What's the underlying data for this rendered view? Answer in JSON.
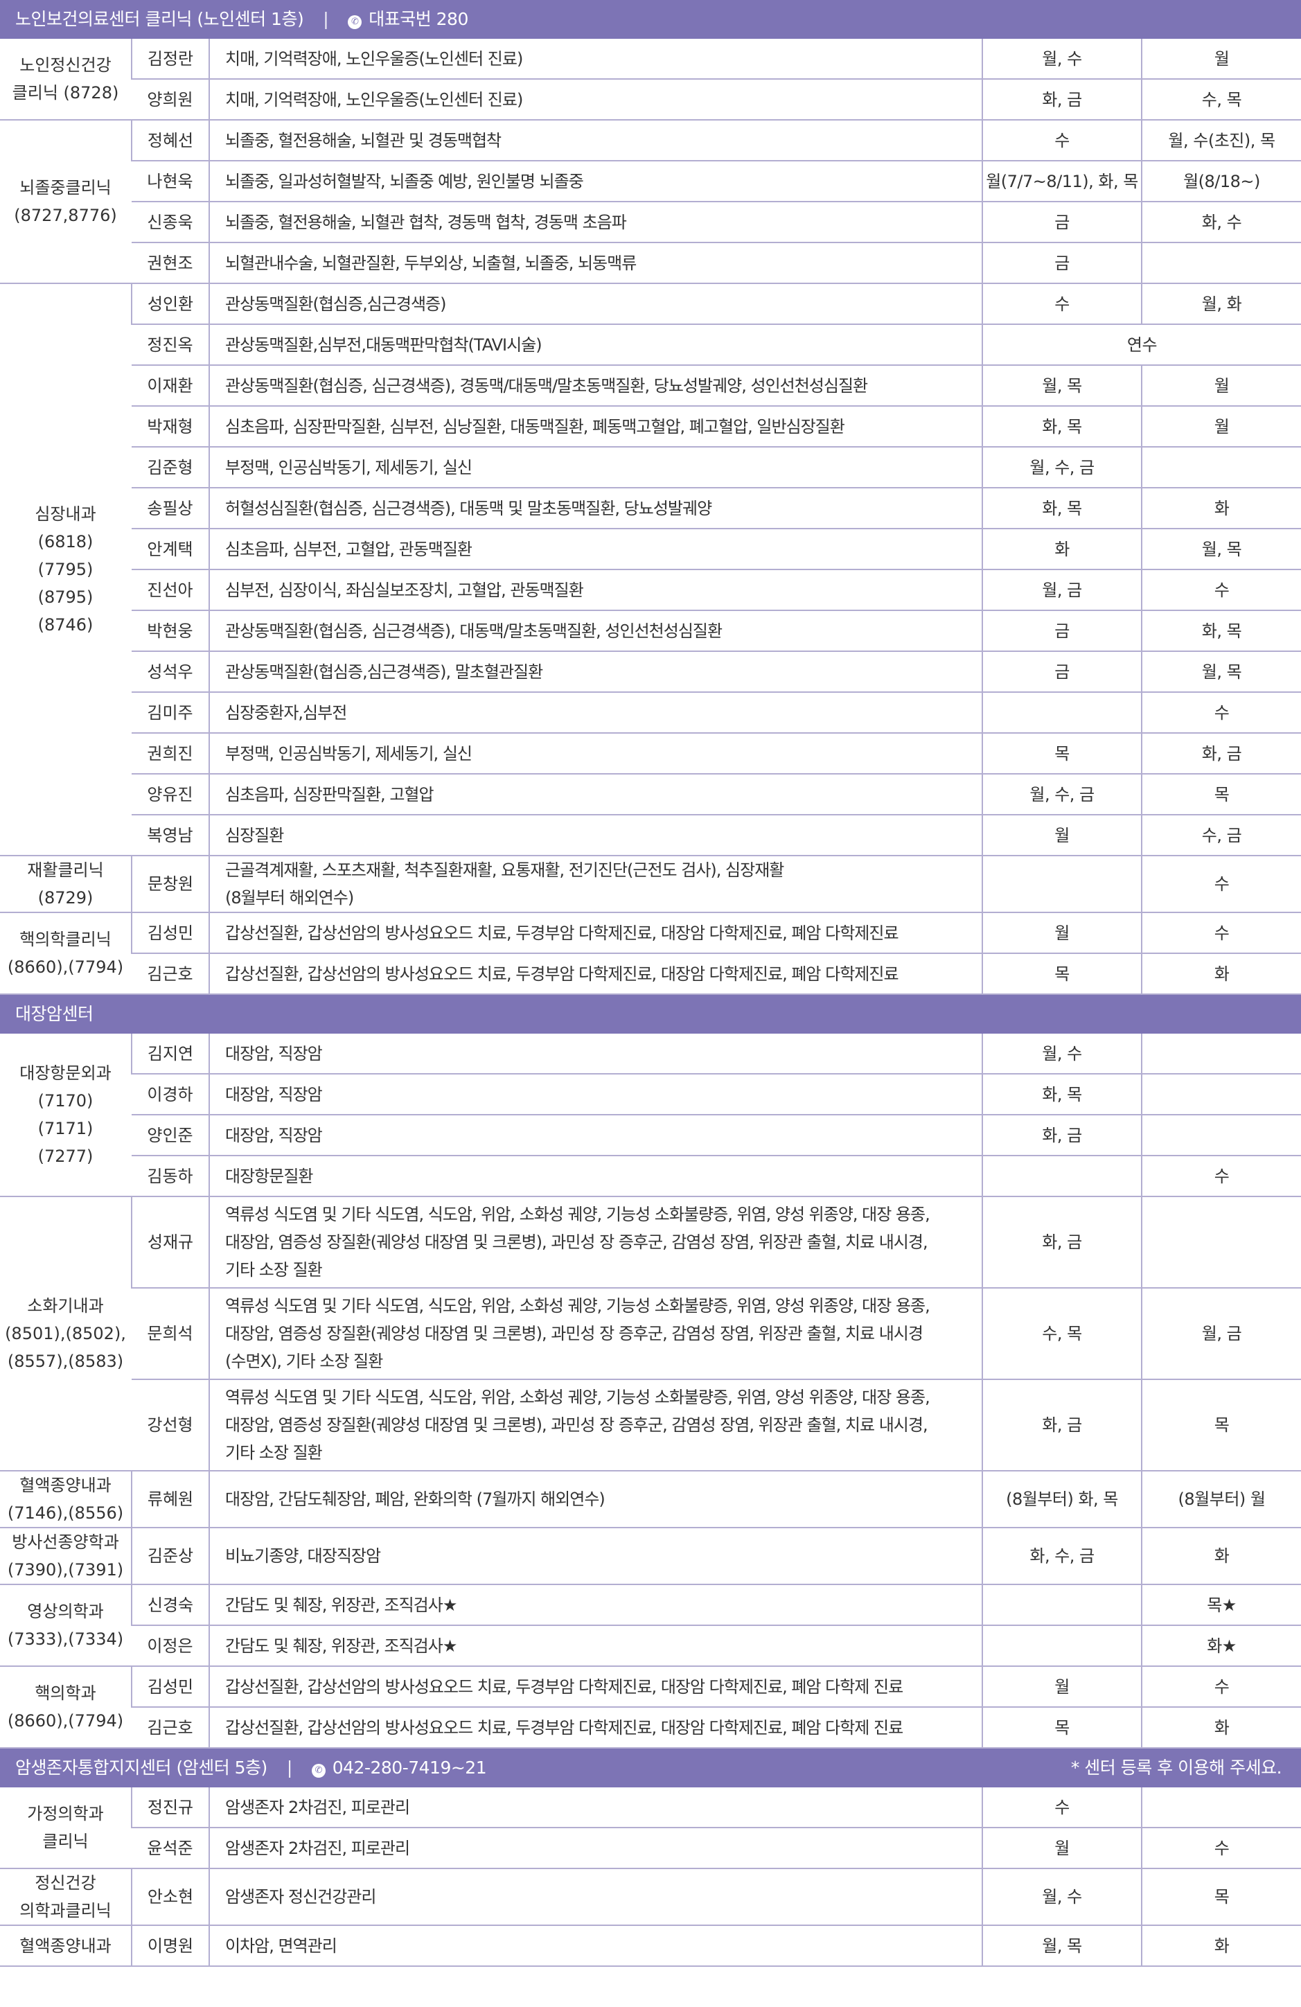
{
  "sections": [
    {
      "title": "노인보건의료센터 클리닉 (노인센터 1층)",
      "phone": "대표국번 280",
      "note": "",
      "groups": [
        {
          "dept": [
            "노인정신건강",
            "클리닉 (8728)"
          ],
          "rows": [
            {
              "doctor": "김정란",
              "specialty": "치매, 기억력장애, 노인우울증(노인센터 진료)",
              "am": "월, 수",
              "pm": "월"
            },
            {
              "doctor": "양희원",
              "specialty": "치매, 기억력장애, 노인우울증(노인센터 진료)",
              "am": "화, 금",
              "pm": "수, 목"
            }
          ]
        },
        {
          "dept": [
            "뇌졸중클리닉",
            "(8727,8776)"
          ],
          "rows": [
            {
              "doctor": "정혜선",
              "specialty": "뇌졸중, 혈전용해술, 뇌혈관 및 경동맥협착",
              "am": "수",
              "pm": "월, 수(초진), 목"
            },
            {
              "doctor": "나현욱",
              "specialty": "뇌졸중, 일과성허혈발작, 뇌졸중 예방, 원인불명 뇌졸중",
              "am": "월(7/7~8/11), 화, 목",
              "pm": "월(8/18~)"
            },
            {
              "doctor": "신종욱",
              "specialty": "뇌졸중, 혈전용해술, 뇌혈관 협착, 경동맥 협착, 경동맥 초음파",
              "am": "금",
              "pm": "화,  수"
            },
            {
              "doctor": "권현조",
              "specialty": "뇌혈관내수술, 뇌혈관질환, 두부외상, 뇌출혈, 뇌졸중, 뇌동맥류",
              "am": "금",
              "pm": ""
            }
          ]
        },
        {
          "dept": [
            "심장내과",
            "(6818)",
            "(7795)",
            "(8795)",
            "(8746)"
          ],
          "rows": [
            {
              "doctor": "성인환",
              "specialty": "관상동맥질환(협심증,심근경색증)",
              "am": "수",
              "pm": "월, 화"
            },
            {
              "doctor": "정진옥",
              "specialty": "관상동맥질환,심부전,대동맥판막협착(TAVI시술)",
              "merged": "연수"
            },
            {
              "doctor": "이재환",
              "specialty": "관상동맥질환(협심증, 심근경색증), 경동맥/대동맥/말초동맥질환, 당뇨성발궤양, 성인선천성심질환",
              "am": "월, 목",
              "pm": "월"
            },
            {
              "doctor": "박재형",
              "specialty": "심초음파, 심장판막질환, 심부전, 심낭질환, 대동맥질환, 폐동맥고혈압, 폐고혈압, 일반심장질환",
              "am": "화, 목",
              "pm": "월"
            },
            {
              "doctor": "김준형",
              "specialty": "부정맥, 인공심박동기, 제세동기, 실신",
              "am": "월, 수, 금",
              "pm": ""
            },
            {
              "doctor": "송필상",
              "specialty": "허혈성심질환(협심증, 심근경색증), 대동맥 및 말초동맥질환, 당뇨성발궤양",
              "am": "화, 목",
              "pm": "화"
            },
            {
              "doctor": "안계택",
              "specialty": "심초음파, 심부전, 고혈압, 관동맥질환",
              "am": "화",
              "pm": "월, 목"
            },
            {
              "doctor": "진선아",
              "specialty": "심부전, 심장이식, 좌심실보조장치, 고혈압, 관동맥질환",
              "am": "월, 금",
              "pm": "수"
            },
            {
              "doctor": "박현웅",
              "specialty": "관상동맥질환(협심증, 심근경색증), 대동맥/말초동맥질환, 성인선천성심질환",
              "am": "금",
              "pm": "화, 목"
            },
            {
              "doctor": "성석우",
              "specialty": "관상동맥질환(협심증,심근경색증), 말초혈관질환",
              "am": "금",
              "pm": "월, 목"
            },
            {
              "doctor": "김미주",
              "specialty": "심장중환자,심부전",
              "am": "",
              "pm": "수"
            },
            {
              "doctor": "권희진",
              "specialty": "부정맥, 인공심박동기, 제세동기, 실신",
              "am": "목",
              "pm": "화, 금"
            },
            {
              "doctor": "양유진",
              "specialty": "심초음파, 심장판막질환, 고혈압",
              "am": "월, 수, 금",
              "pm": "목"
            },
            {
              "doctor": "복영남",
              "specialty": "심장질환",
              "am": "월",
              "pm": "수, 금"
            }
          ]
        },
        {
          "dept": [
            "재활클리닉",
            "(8729)"
          ],
          "rows": [
            {
              "doctor": "문창원",
              "specialty": [
                "근골격계재활, 스포츠재활, 척추질환재활, 요통재활, 전기진단(근전도 검사), 심장재활",
                "(8월부터 해외연수)"
              ],
              "am": "",
              "pm": "수"
            }
          ]
        },
        {
          "dept": [
            "핵의학클리닉",
            "(8660),(7794)"
          ],
          "rows": [
            {
              "doctor": "김성민",
              "specialty": "갑상선질환, 갑상선암의 방사성요오드 치료, 두경부암 다학제진료, 대장암 다학제진료, 폐암 다학제진료",
              "am": "월",
              "pm": "수"
            },
            {
              "doctor": "김근호",
              "specialty": "갑상선질환, 갑상선암의 방사성요오드 치료, 두경부암 다학제진료, 대장암 다학제진료, 폐암 다학제진료",
              "am": "목",
              "pm": "화"
            }
          ]
        }
      ]
    },
    {
      "title": "대장암센터",
      "phone": "",
      "note": "",
      "groups": [
        {
          "dept": [
            "대장항문외과",
            "(7170)",
            "(7171)",
            "(7277)"
          ],
          "rows": [
            {
              "doctor": "김지연",
              "specialty": "대장암, 직장암",
              "am": "월, 수",
              "pm": ""
            },
            {
              "doctor": "이경하",
              "specialty": "대장암, 직장암",
              "am": "화, 목",
              "pm": ""
            },
            {
              "doctor": "양인준",
              "specialty": "대장암, 직장암",
              "am": "화, 금",
              "pm": ""
            },
            {
              "doctor": "김동하",
              "specialty": "대장항문질환",
              "am": "",
              "pm": "수"
            }
          ]
        },
        {
          "dept": [
            "소화기내과",
            "(8501),(8502),",
            "(8557),(8583)"
          ],
          "rows": [
            {
              "doctor": "성재규",
              "specialty": [
                "역류성 식도염 및 기타 식도염, 식도암, 위암, 소화성 궤양, 기능성 소화불량증, 위염, 양성 위종양, 대장 용종,",
                "대장암, 염증성 장질환(궤양성 대장염 및 크론병), 과민성 장 증후군, 감염성 장염, 위장관 출혈, 치료 내시경,",
                "기타 소장 질환"
              ],
              "am": "화, 금",
              "pm": ""
            },
            {
              "doctor": "문희석",
              "specialty": [
                "역류성 식도염 및 기타 식도염, 식도암, 위암, 소화성 궤양, 기능성 소화불량증, 위염, 양성 위종양, 대장 용종,",
                "대장암, 염증성 장질환(궤양성 대장염 및 크론병), 과민성 장 증후군, 감염성 장염, 위장관 출혈, 치료 내시경",
                "(수면X), 기타 소장 질환"
              ],
              "am": "수, 목",
              "pm": "월, 금"
            },
            {
              "doctor": "강선형",
              "specialty": [
                "역류성 식도염 및 기타 식도염, 식도암, 위암, 소화성 궤양, 기능성 소화불량증, 위염, 양성 위종양, 대장 용종,",
                "대장암, 염증성 장질환(궤양성 대장염 및 크론병), 과민성 장 증후군, 감염성 장염, 위장관 출혈, 치료 내시경,",
                "기타 소장 질환"
              ],
              "am": "화, 금",
              "pm": "목"
            }
          ]
        },
        {
          "dept": [
            "혈액종양내과",
            "(7146),(8556)"
          ],
          "rows": [
            {
              "doctor": "류혜원",
              "specialty": "대장암, 간담도췌장암, 폐암, 완화의학 (7월까지 해외연수)",
              "am": "(8월부터) 화, 목",
              "pm": "(8월부터) 월"
            }
          ]
        },
        {
          "dept": [
            "방사선종양학과",
            "(7390),(7391)"
          ],
          "rows": [
            {
              "doctor": "김준상",
              "specialty": "비뇨기종양, 대장직장암",
              "am": "화, 수, 금",
              "pm": "화"
            }
          ]
        },
        {
          "dept": [
            "영상의학과",
            "(7333),(7334)"
          ],
          "rows": [
            {
              "doctor": "신경숙",
              "specialty": "간담도 및 췌장, 위장관, 조직검사★",
              "am": "",
              "pm": "목★"
            },
            {
              "doctor": "이정은",
              "specialty": "간담도 및 췌장, 위장관, 조직검사★",
              "am": "",
              "pm": "화★"
            }
          ]
        },
        {
          "dept": [
            "핵의학과",
            "(8660),(7794)"
          ],
          "rows": [
            {
              "doctor": "김성민",
              "specialty": "갑상선질환, 갑상선암의 방사성요오드 치료, 두경부암 다학제진료, 대장암 다학제진료, 폐암 다학제 진료",
              "am": "월",
              "pm": "수"
            },
            {
              "doctor": "김근호",
              "specialty": "갑상선질환, 갑상선암의 방사성요오드 치료, 두경부암 다학제진료, 대장암 다학제진료, 폐암 다학제 진료",
              "am": "목",
              "pm": "화"
            }
          ]
        }
      ]
    },
    {
      "title": "암생존자통합지지센터 (암센터 5층)",
      "phone": "042-280-7419~21",
      "note": "* 센터 등록 후 이용해 주세요.",
      "groups": [
        {
          "dept": [
            "가정의학과",
            "클리닉"
          ],
          "rows": [
            {
              "doctor": "정진규",
              "specialty": "암생존자 2차검진, 피로관리",
              "am": "수",
              "pm": ""
            },
            {
              "doctor": "윤석준",
              "specialty": "암생존자 2차검진, 피로관리",
              "am": "월",
              "pm": "수"
            }
          ]
        },
        {
          "dept": [
            "정신건강",
            "의학과클리닉"
          ],
          "rows": [
            {
              "doctor": "안소현",
              "specialty": "암생존자 정신건강관리",
              "am": "월, 수",
              "pm": "목"
            }
          ]
        },
        {
          "dept": [
            "혈액종양내과"
          ],
          "rows": [
            {
              "doctor": "이명원",
              "specialty": "이차암, 면역관리",
              "am": "월, 목",
              "pm": "화"
            }
          ]
        }
      ]
    }
  ]
}
